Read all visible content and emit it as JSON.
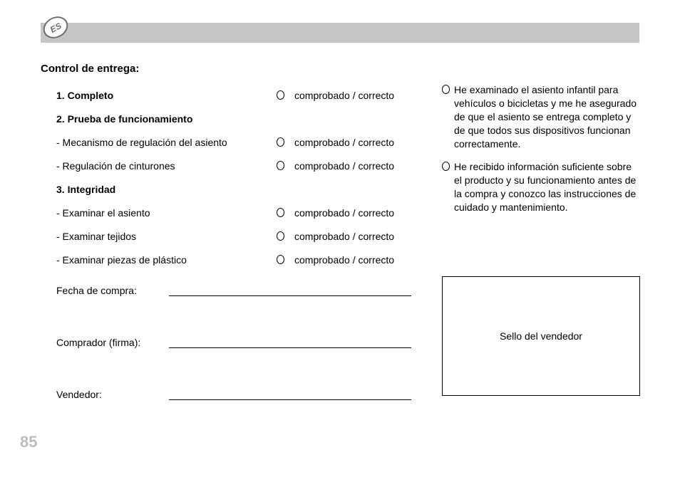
{
  "lang_code": "ES",
  "section_title": "Control de entrega:",
  "checklist": [
    {
      "label": "1. Completo",
      "bold": true,
      "has_check": true
    },
    {
      "label": "2. Prueba de funcionamiento",
      "bold": true,
      "has_check": false
    },
    {
      "label": "- Mecanismo de regulación del asiento",
      "bold": false,
      "has_check": true
    },
    {
      "label": "- Regulación de cinturones",
      "bold": false,
      "has_check": true
    },
    {
      "label": "3. Integridad",
      "bold": true,
      "has_check": false
    },
    {
      "label": "- Examinar el asiento",
      "bold": false,
      "has_check": true
    },
    {
      "label": "- Examinar tejidos",
      "bold": false,
      "has_check": true
    },
    {
      "label": "- Examinar piezas de plástico",
      "bold": false,
      "has_check": true
    }
  ],
  "check_label": "comprobado / correcto",
  "declarations": [
    "He examinado el asiento infantil para vehículos o bicicletas y me he asegurado de que el asiento se entrega completo y de que todos sus dispositivos funcionan correctamente.",
    "He recibido información suficiente sobre el producto y su funcionamiento antes de la compra y conozco las instrucciones de cuidado y mantenimiento."
  ],
  "signatures": {
    "date_label": "Fecha de compra:",
    "buyer_label": "Comprador (firma):",
    "seller_label": "Vendedor:"
  },
  "seller_box_label": "Sello del vendedor",
  "page_number": "85"
}
